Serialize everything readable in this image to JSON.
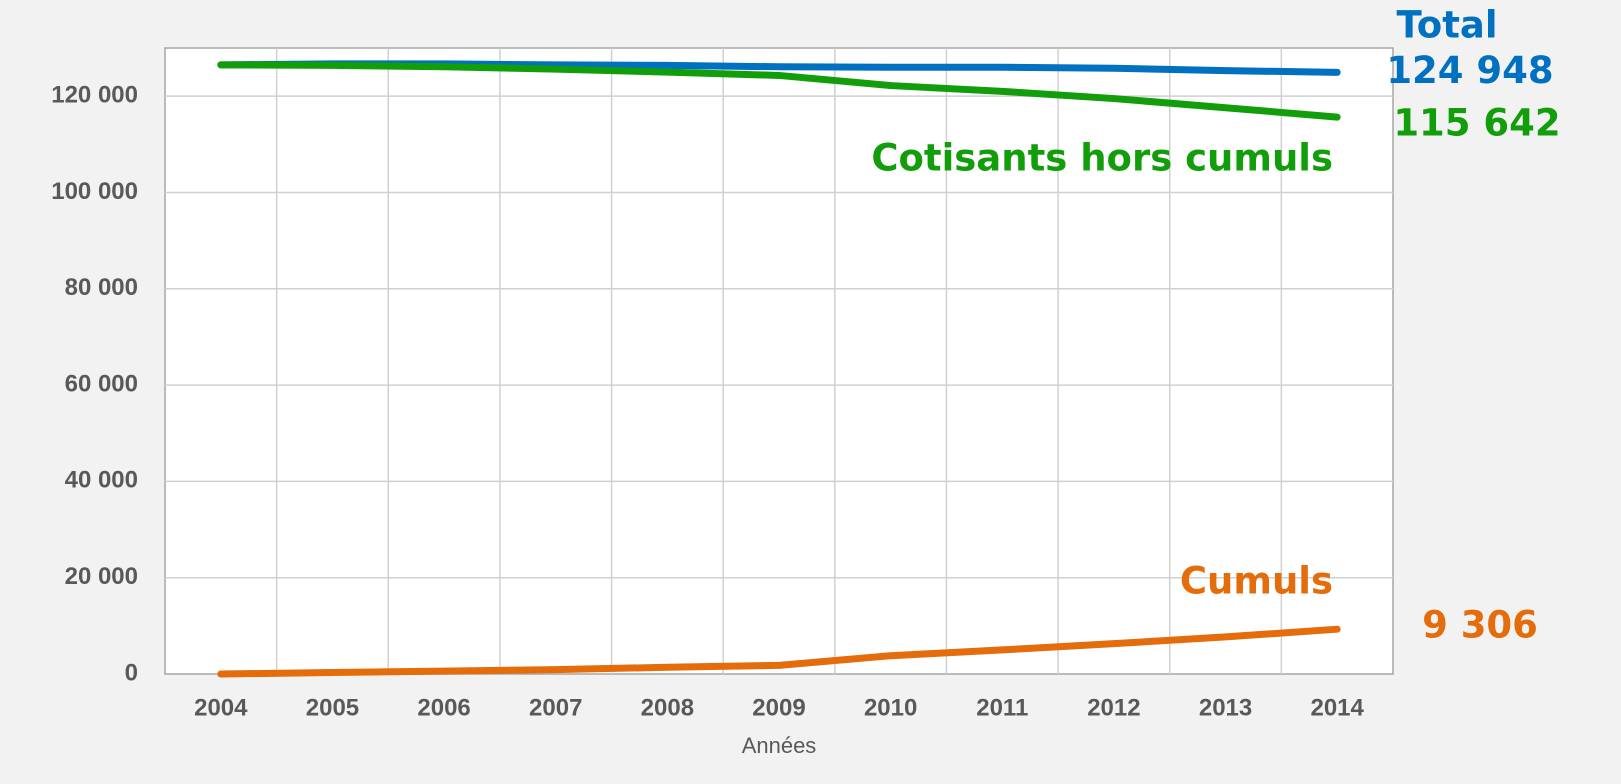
{
  "chart_data": {
    "type": "line",
    "x_label": "Années",
    "categories": [
      "2004",
      "2005",
      "2006",
      "2007",
      "2008",
      "2009",
      "2010",
      "2011",
      "2012",
      "2013",
      "2014"
    ],
    "series": [
      {
        "name": "Total",
        "color": "#0070c0",
        "values": [
          126500,
          126700,
          126700,
          126500,
          126400,
          126100,
          126000,
          126000,
          125800,
          125300,
          124948
        ],
        "value_labels": [
          null,
          null,
          null,
          null,
          null,
          null,
          null,
          null,
          null,
          null,
          "124 948"
        ]
      },
      {
        "name": "Cotisants hors cumuls",
        "color": "#129e0a",
        "values": [
          126500,
          126400,
          126100,
          125600,
          125000,
          124300,
          122200,
          121000,
          119500,
          117600,
          115642
        ],
        "value_labels": [
          null,
          null,
          null,
          null,
          null,
          null,
          null,
          null,
          null,
          null,
          "115 642"
        ]
      },
      {
        "name": "Cumuls",
        "color": "#e46c0a",
        "values": [
          0,
          300,
          600,
          900,
          1400,
          1800,
          3800,
          5000,
          6300,
          7700,
          9306
        ],
        "value_labels": [
          null,
          null,
          null,
          null,
          null,
          null,
          null,
          null,
          null,
          null,
          "9 306"
        ]
      }
    ],
    "ylim": [
      0,
      130000
    ],
    "yticks": [
      0,
      {
        "value": 20000,
        "label": "20 000"
      },
      {
        "value": 40000,
        "label": "40 000"
      },
      {
        "value": 60000,
        "label": "60 000"
      },
      {
        "value": 80000,
        "label": "80 000"
      },
      {
        "value": 100000,
        "label": "100 000"
      },
      {
        "value": 120000,
        "label": "120 000"
      }
    ],
    "grid": true
  }
}
